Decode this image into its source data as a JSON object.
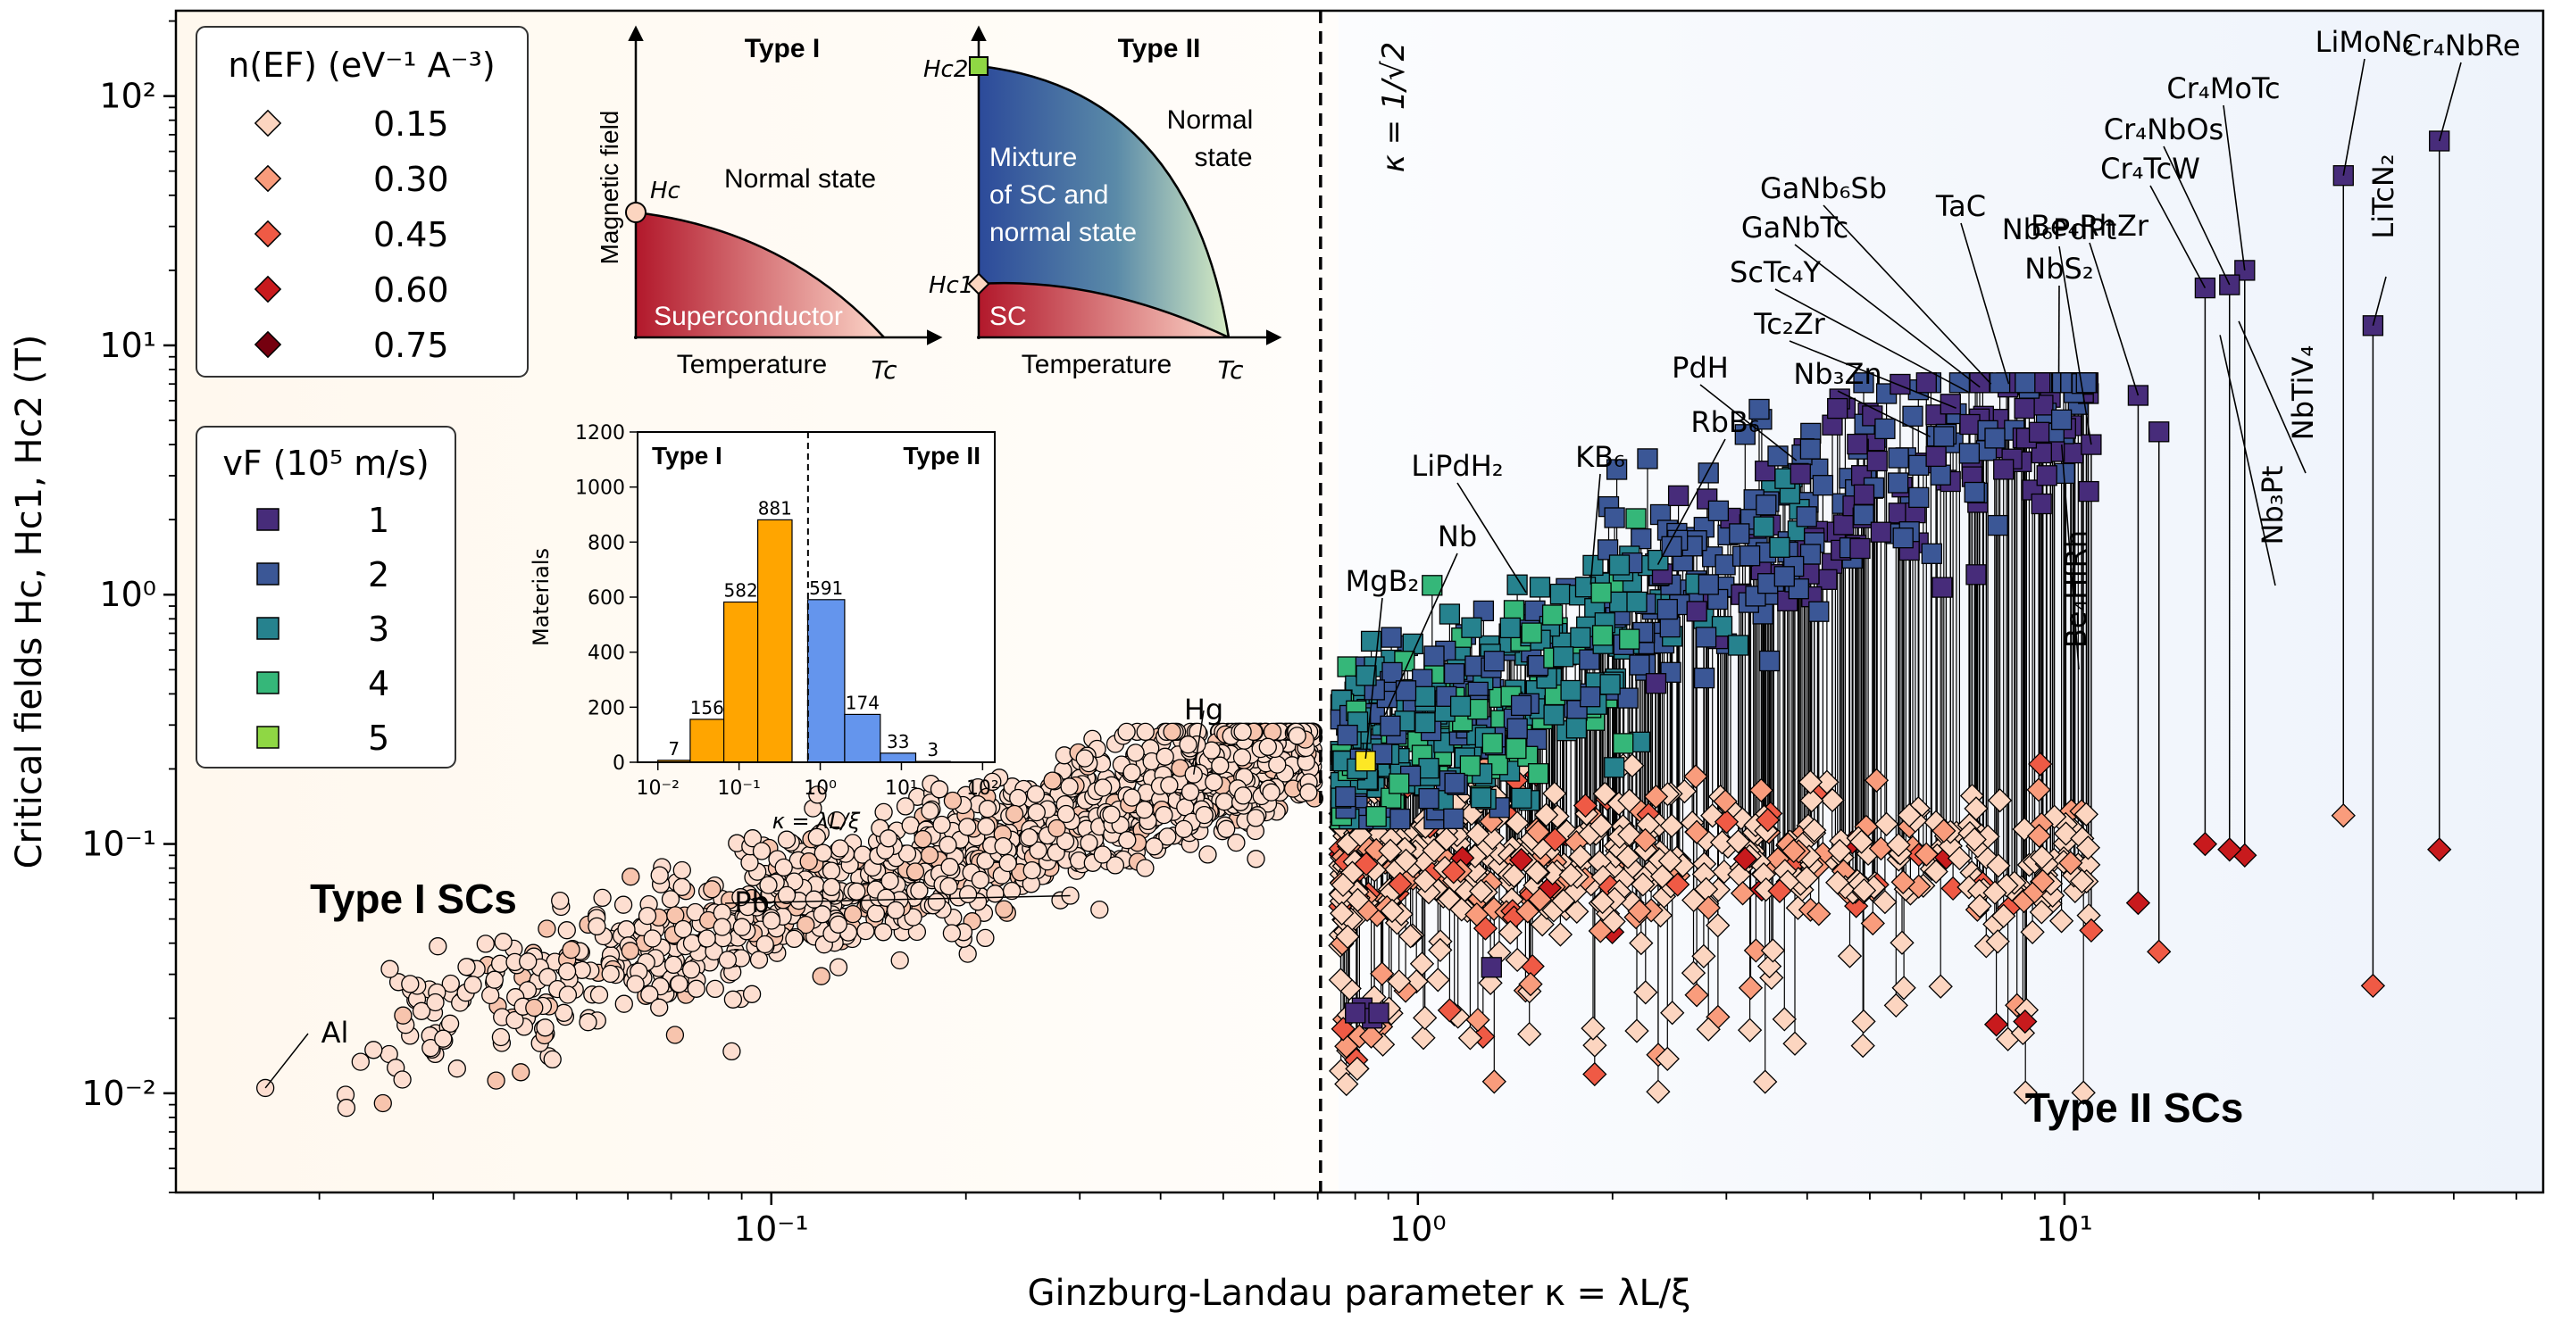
{
  "chart_data": {
    "type": "scatter",
    "title": "",
    "xlabel": "Ginzburg-Landau parameter κ = λL/ξ",
    "ylabel": "Critical fields Hc, Hc1, Hc2 (T)",
    "x_scale": "log",
    "y_scale": "log",
    "xlim": [
      0.012,
      55
    ],
    "ylim": [
      0.004,
      220
    ],
    "x_ticks": [
      {
        "value": 0.1,
        "label": "10⁻¹"
      },
      {
        "value": 1,
        "label": "10⁰"
      },
      {
        "value": 10,
        "label": "10¹"
      }
    ],
    "y_ticks": [
      {
        "value": 0.01,
        "label": "10⁻²"
      },
      {
        "value": 0.1,
        "label": "10⁻¹"
      },
      {
        "value": 1,
        "label": "10⁰"
      },
      {
        "value": 10,
        "label": "10¹"
      },
      {
        "value": 100,
        "label": "10²"
      }
    ],
    "divider": {
      "kappa": 0.7071,
      "label": "κ = 1/√2"
    },
    "region_labels": {
      "type1": "Type I SCs",
      "type2": "Type II SCs"
    },
    "legend_dos": {
      "title": "n(EF) (eV⁻¹ A⁻³)",
      "entries": [
        {
          "label": "0.15",
          "color": "#fcd5c0"
        },
        {
          "label": "0.30",
          "color": "#f99c7c"
        },
        {
          "label": "0.45",
          "color": "#ef5a45"
        },
        {
          "label": "0.60",
          "color": "#c81a1d"
        },
        {
          "label": "0.75",
          "color": "#75000f"
        }
      ]
    },
    "legend_vf": {
      "title": "vF (10⁵ m/s)",
      "entries": [
        {
          "label": "1",
          "color": "#472c7a"
        },
        {
          "label": "2",
          "color": "#3b5796"
        },
        {
          "label": "3",
          "color": "#26828e"
        },
        {
          "label": "4",
          "color": "#35b779"
        },
        {
          "label": "5",
          "color": "#8fd744"
        }
      ]
    },
    "labeled_type1": [
      {
        "name": "Al",
        "kappa": 0.0165,
        "hc": 0.0105
      },
      {
        "name": "Pb",
        "kappa": 0.29,
        "hc": 0.062
      },
      {
        "name": "Hg",
        "kappa": 0.45,
        "hc": 0.19
      }
    ],
    "labeled_type2": [
      {
        "name": "MgB2",
        "kappa": 0.83,
        "hc2": 0.22
      },
      {
        "name": "Nb",
        "kappa": 0.89,
        "hc2": 0.33
      },
      {
        "name": "LiPdH2",
        "kappa": 1.47,
        "hc2": 1.02
      },
      {
        "name": "KB6",
        "kappa": 1.85,
        "hc2": 1.1
      },
      {
        "name": "RbB6",
        "kappa": 2.35,
        "hc2": 1.32
      },
      {
        "name": "PdH",
        "kappa": 3.85,
        "hc2": 3.45
      },
      {
        "name": "Nb3Zn",
        "kappa": 6.2,
        "hc2": 4.3
      },
      {
        "name": "Tc2Zr",
        "kappa": 6.8,
        "hc2": 5.6
      },
      {
        "name": "ScTc4Y",
        "kappa": 7.1,
        "hc2": 6.5
      },
      {
        "name": "GaNbTc",
        "kappa": 7.4,
        "hc2": 6.8
      },
      {
        "name": "GaNb6Sb",
        "kappa": 7.7,
        "hc2": 7.0
      },
      {
        "name": "TaC",
        "kappa": 8.2,
        "hc2": 7.0
      },
      {
        "name": "NbS2",
        "kappa": 9.8,
        "hc2": 7.8
      },
      {
        "name": "Nb6PdPt",
        "kappa": 11.0,
        "hc2": 4.0
      },
      {
        "name": "Be4RhZr",
        "kappa": 13.0,
        "hc2": 6.3
      },
      {
        "name": "Cr4TcW",
        "kappa": 16.5,
        "hc2": 17.0
      },
      {
        "name": "Cr4NbOs",
        "kappa": 18.0,
        "hc2": 17.5
      },
      {
        "name": "Cr4MoTc",
        "kappa": 19.0,
        "hc2": 20.0
      },
      {
        "name": "LiMoN2",
        "kappa": 27.0,
        "hc2": 48.0
      },
      {
        "name": "Cr4NbRe",
        "kappa": 38.0,
        "hc2": 66.0
      },
      {
        "name": "LiTcN2",
        "kappa": 30.0,
        "hc2": 12.0
      },
      {
        "name": "NbTiV4",
        "kappa": 18.6,
        "hc2": 12.5
      },
      {
        "name": "Nb3Pt",
        "kappa": 17.4,
        "hc2": 11.0
      },
      {
        "name": "Be4HfRh",
        "kappa": 9.9,
        "hc2": 4.0
      }
    ],
    "stems": [
      {
        "kappa": 27.0,
        "hc1": 0.13,
        "hc2": 48.0
      },
      {
        "kappa": 38.0,
        "hc1": 0.095,
        "hc2": 66.0
      },
      {
        "kappa": 30.0,
        "hc1": 0.027,
        "hc2": 12.0
      },
      {
        "kappa": 19.0,
        "hc1": 0.09,
        "hc2": 20.0
      },
      {
        "kappa": 18.0,
        "hc1": 0.095,
        "hc2": 17.5
      },
      {
        "kappa": 16.5,
        "hc1": 0.1,
        "hc2": 17.0
      },
      {
        "kappa": 14.0,
        "hc1": 0.037,
        "hc2": 4.5
      },
      {
        "kappa": 13.0,
        "hc1": 0.058,
        "hc2": 6.3
      },
      {
        "kappa": 11.0,
        "hc1": 0.045,
        "hc2": 4.0
      }
    ],
    "inset_histogram": {
      "ylabel": "Materials",
      "xlabel": "κ = λL/ξ",
      "ylim": [
        0,
        1200
      ],
      "yticks": [
        0,
        200,
        400,
        600,
        800,
        1000,
        1200
      ],
      "xticks": [
        {
          "value": 0.01,
          "label": "10⁻²"
        },
        {
          "value": 0.1,
          "label": "10⁻¹"
        },
        {
          "value": 1,
          "label": "10⁰"
        },
        {
          "value": 10,
          "label": "10¹"
        },
        {
          "value": 100,
          "label": "10²"
        }
      ],
      "bins": [
        {
          "from": 0.01,
          "to": 0.025,
          "count": 7,
          "type": "I"
        },
        {
          "from": 0.025,
          "to": 0.065,
          "count": 156,
          "type": "I"
        },
        {
          "from": 0.065,
          "to": 0.17,
          "count": 582,
          "type": "I"
        },
        {
          "from": 0.17,
          "to": 0.45,
          "count": 881,
          "type": "I"
        },
        {
          "from": 0.7,
          "to": 2.0,
          "count": 591,
          "type": "II"
        },
        {
          "from": 2.0,
          "to": 5.5,
          "count": 174,
          "type": "II"
        },
        {
          "from": 5.5,
          "to": 15,
          "count": 33,
          "type": "II"
        },
        {
          "from": 15,
          "to": 40,
          "count": 3,
          "type": "II"
        }
      ],
      "region_labels": [
        "Type I",
        "Type II"
      ],
      "colors": {
        "type1": "#ffa500",
        "type2": "#6495ed"
      }
    },
    "phase_diagram_type1": {
      "title": "Type I",
      "ylabel": "Magnetic field",
      "xlabel": "Temperature",
      "hc_label": "Hc",
      "tc_label": "Tc",
      "normal_label": "Normal state",
      "sc_label": "Superconductor"
    },
    "phase_diagram_type2": {
      "title": "Type II",
      "hc2_label": "Hc2",
      "hc1_label": "Hc1",
      "tc_label": "Tc",
      "xlabel": "Temperature",
      "normal_label_1": "Normal",
      "normal_label_2": "state",
      "mixed_label_1": "Mixture",
      "mixed_label_2": "of SC and",
      "mixed_label_3": "normal state",
      "sc_label": "SC"
    }
  }
}
